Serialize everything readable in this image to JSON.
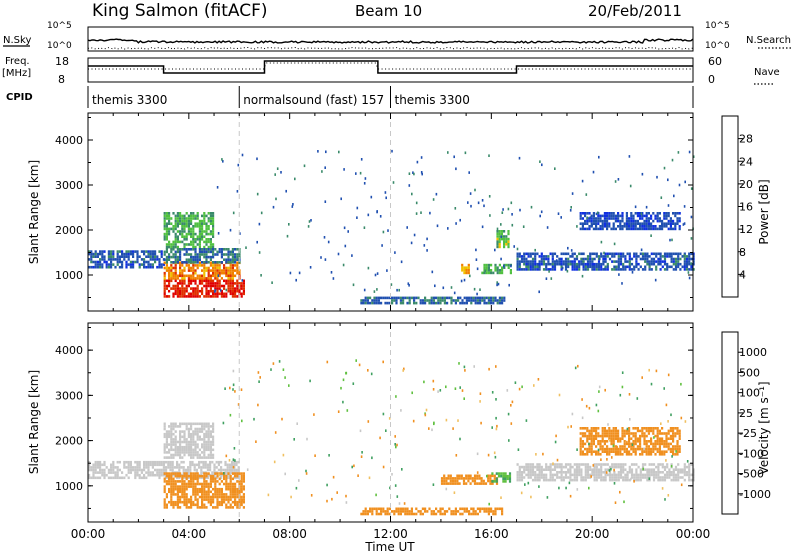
{
  "header": {
    "station": "King Salmon (fitACF)",
    "beam": "Beam 10",
    "date": "20/Feb/2011"
  },
  "top_panels": {
    "nsky_label": "N.Sky",
    "nsky_ticks": [
      "10^5",
      "10^0"
    ],
    "nsearch_label": "N.Search",
    "nsearch_ticks": [
      "10^5",
      "10^0"
    ],
    "freq_label": "Freq.",
    "freq_unit": "[MHz]",
    "freq_ticks": [
      "18",
      "8"
    ],
    "nave_label": "Nave",
    "nave_ticks": [
      "60",
      "0"
    ],
    "cpid_label": "CPID",
    "cpid_segments": [
      {
        "label": "themis 3300",
        "start_h": 0,
        "end_h": 6
      },
      {
        "label": "normalsound (fast) 157",
        "start_h": 6,
        "end_h": 12
      },
      {
        "label": "themis 3300",
        "start_h": 12,
        "end_h": 24
      }
    ]
  },
  "axes": {
    "ylabel": "Slant Range [km]",
    "xlabel": "Time UT",
    "x_ticks": [
      "00:00",
      "04:00",
      "08:00",
      "12:00",
      "16:00",
      "20:00",
      "00:00"
    ],
    "y_ticks": [
      "1000",
      "2000",
      "3000",
      "4000"
    ]
  },
  "colorbars": {
    "power_label": "Power [dB]",
    "power_ticks": [
      "4",
      "8",
      "12",
      "16",
      "20",
      "24",
      "28"
    ],
    "power_colors": [
      "#1030e0",
      "#2050b0",
      "#3a8a6a",
      "#50c040",
      "#f0c000",
      "#f08000",
      "#e03000",
      "#e00000"
    ],
    "velocity_label": "Velocity [m s⁻¹]",
    "velocity_ticks": [
      "1000",
      "500",
      "100",
      "25",
      "-25",
      "-100",
      "-500",
      "-1000"
    ],
    "velocity_colors": [
      "#2050c0",
      "#3a70b0",
      "#40a060",
      "#60c040",
      "#c8c8c8",
      "#f0c060",
      "#f09020",
      "#f05000",
      "#e00000"
    ]
  },
  "chart_data": [
    {
      "type": "heatmap",
      "title": "Power",
      "x_unit": "hours UT",
      "xlim": [
        0,
        24
      ],
      "ylim": [
        200,
        4600
      ],
      "colorbar_range": [
        0,
        32
      ],
      "regions": [
        {
          "t0": 0.0,
          "t1": 3.0,
          "r0": 1150,
          "r1": 1550,
          "value": 6
        },
        {
          "t0": 3.0,
          "t1": 6.2,
          "r0": 500,
          "r1": 900,
          "value": 28
        },
        {
          "t0": 3.0,
          "t1": 6.0,
          "r0": 900,
          "r1": 1300,
          "value": 22
        },
        {
          "t0": 3.0,
          "t1": 5.0,
          "r0": 1600,
          "r1": 2400,
          "value": 13
        },
        {
          "t0": 3.0,
          "t1": 6.0,
          "r0": 1300,
          "r1": 1600,
          "value": 8
        },
        {
          "t0": 10.8,
          "t1": 16.5,
          "r0": 350,
          "r1": 520,
          "value": 7
        },
        {
          "t0": 14.8,
          "t1": 15.1,
          "r0": 1050,
          "r1": 1250,
          "value": 20
        },
        {
          "t0": 15.6,
          "t1": 16.8,
          "r0": 1050,
          "r1": 1250,
          "value": 12
        },
        {
          "t0": 16.2,
          "t1": 16.7,
          "r0": 1650,
          "r1": 2000,
          "value": 14
        },
        {
          "t0": 17.0,
          "t1": 24.0,
          "r0": 1100,
          "r1": 1500,
          "value": 6
        },
        {
          "t0": 19.5,
          "t1": 23.5,
          "r0": 2000,
          "r1": 2400,
          "value": 5
        }
      ]
    },
    {
      "type": "heatmap",
      "title": "Velocity",
      "x_unit": "hours UT",
      "xlim": [
        0,
        24
      ],
      "ylim": [
        200,
        4600
      ],
      "colorbar_range": [
        -1000,
        1000
      ],
      "regions": [
        {
          "t0": 0.0,
          "t1": 6.0,
          "r0": 1150,
          "r1": 1550,
          "value": 0
        },
        {
          "t0": 3.0,
          "t1": 6.2,
          "r0": 500,
          "r1": 1300,
          "value": -300
        },
        {
          "t0": 3.0,
          "t1": 5.0,
          "r0": 1600,
          "r1": 2400,
          "value": 0
        },
        {
          "t0": 10.8,
          "t1": 16.5,
          "r0": 350,
          "r1": 520,
          "value": -400
        },
        {
          "t0": 14.0,
          "t1": 16.2,
          "r0": 1050,
          "r1": 1250,
          "value": -300
        },
        {
          "t0": 16.0,
          "t1": 16.7,
          "r0": 1100,
          "r1": 1300,
          "value": 100
        },
        {
          "t0": 17.0,
          "t1": 24.0,
          "r0": 1100,
          "r1": 1500,
          "value": 0
        },
        {
          "t0": 19.5,
          "t1": 23.5,
          "r0": 1700,
          "r1": 2300,
          "value": -200
        }
      ]
    }
  ]
}
